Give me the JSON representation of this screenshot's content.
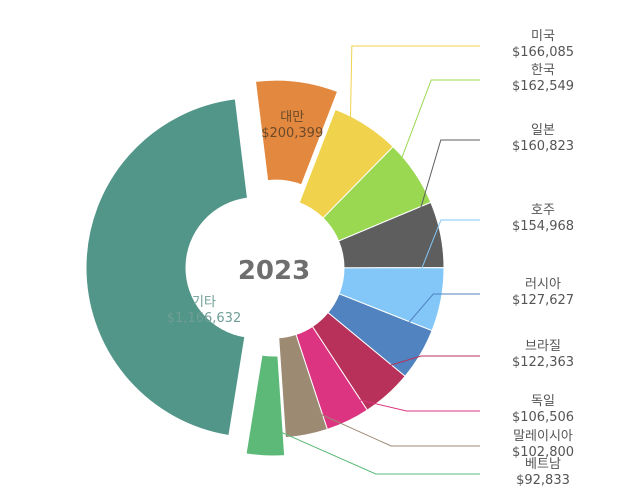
{
  "chart_data": {
    "type": "pie",
    "center_label": "2023",
    "currency": "$",
    "slices": [
      {
        "name": "대만",
        "value": 200399,
        "label": "$200,399",
        "color": "#e3883f",
        "exploded": true
      },
      {
        "name": "미국",
        "value": 166085,
        "label": "$166,085",
        "color": "#f0d24c"
      },
      {
        "name": "한국",
        "value": 162549,
        "label": "$162,549",
        "color": "#9ad852"
      },
      {
        "name": "일본",
        "value": 160823,
        "label": "$160,823",
        "color": "#5e5e5e"
      },
      {
        "name": "호주",
        "value": 154968,
        "label": "$154,968",
        "color": "#82c7f8"
      },
      {
        "name": "러시아",
        "value": 127627,
        "label": "$127,627",
        "color": "#5083bf"
      },
      {
        "name": "브라질",
        "value": 122363,
        "label": "$122,363",
        "color": "#b8315a"
      },
      {
        "name": "독일",
        "value": 106506,
        "label": "$106,506",
        "color": "#dc3480"
      },
      {
        "name": "말레이시아",
        "value": 102800,
        "label": "$102,800",
        "color": "#9c8a73"
      },
      {
        "name": "베트남",
        "value": 92833,
        "label": "$92,833",
        "color": "#5cb978",
        "exploded": true
      },
      {
        "name": "기타",
        "value": 1166632,
        "label": "$1,166,632",
        "color": "#529689",
        "exploded": true
      }
    ]
  }
}
